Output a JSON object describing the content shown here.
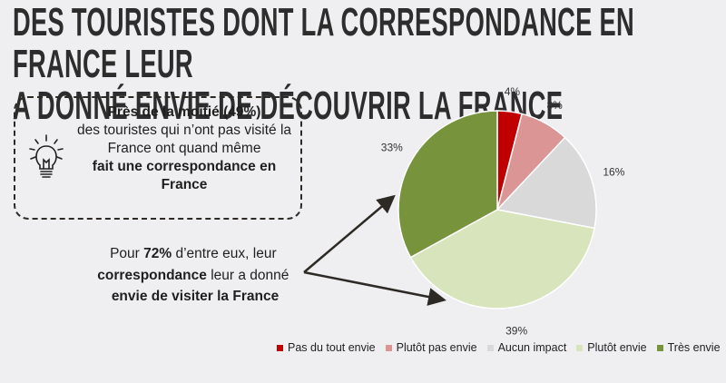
{
  "title": {
    "line1": "DES TOURISTES DONT LA CORRESPONDANCE EN FRANCE LEUR",
    "line2": "A DONNÉ ENVIE DE DÉCOUVRIR LA FRANCE"
  },
  "callout": {
    "icon": "lightbulb-icon",
    "bold1": "Près de la moitié (49%)",
    "text1": " des touristes qui n’ont pas visité la France ont quand même ",
    "bold2": "fait une correspondance en France"
  },
  "note": {
    "text1": "Pour ",
    "bold1": "72%",
    "text2": " d’entre eux, leur ",
    "bold2": "correspondance",
    "text3": " leur a donné ",
    "bold3": "envie de visiter la France"
  },
  "chart_data": {
    "type": "pie",
    "categories": [
      "Pas du tout envie",
      "Plutôt pas envie",
      "Aucun impact",
      "Plutôt envie",
      "Très envie"
    ],
    "values": [
      4,
      8,
      16,
      39,
      33
    ],
    "labels": [
      "4%",
      "8%",
      "16%",
      "39%",
      "33%"
    ],
    "colors": [
      "#c00000",
      "#db9594",
      "#d9d9d9",
      "#d8e4bc",
      "#77933c"
    ],
    "start": "top, clockwise",
    "legend_position": "bottom"
  }
}
